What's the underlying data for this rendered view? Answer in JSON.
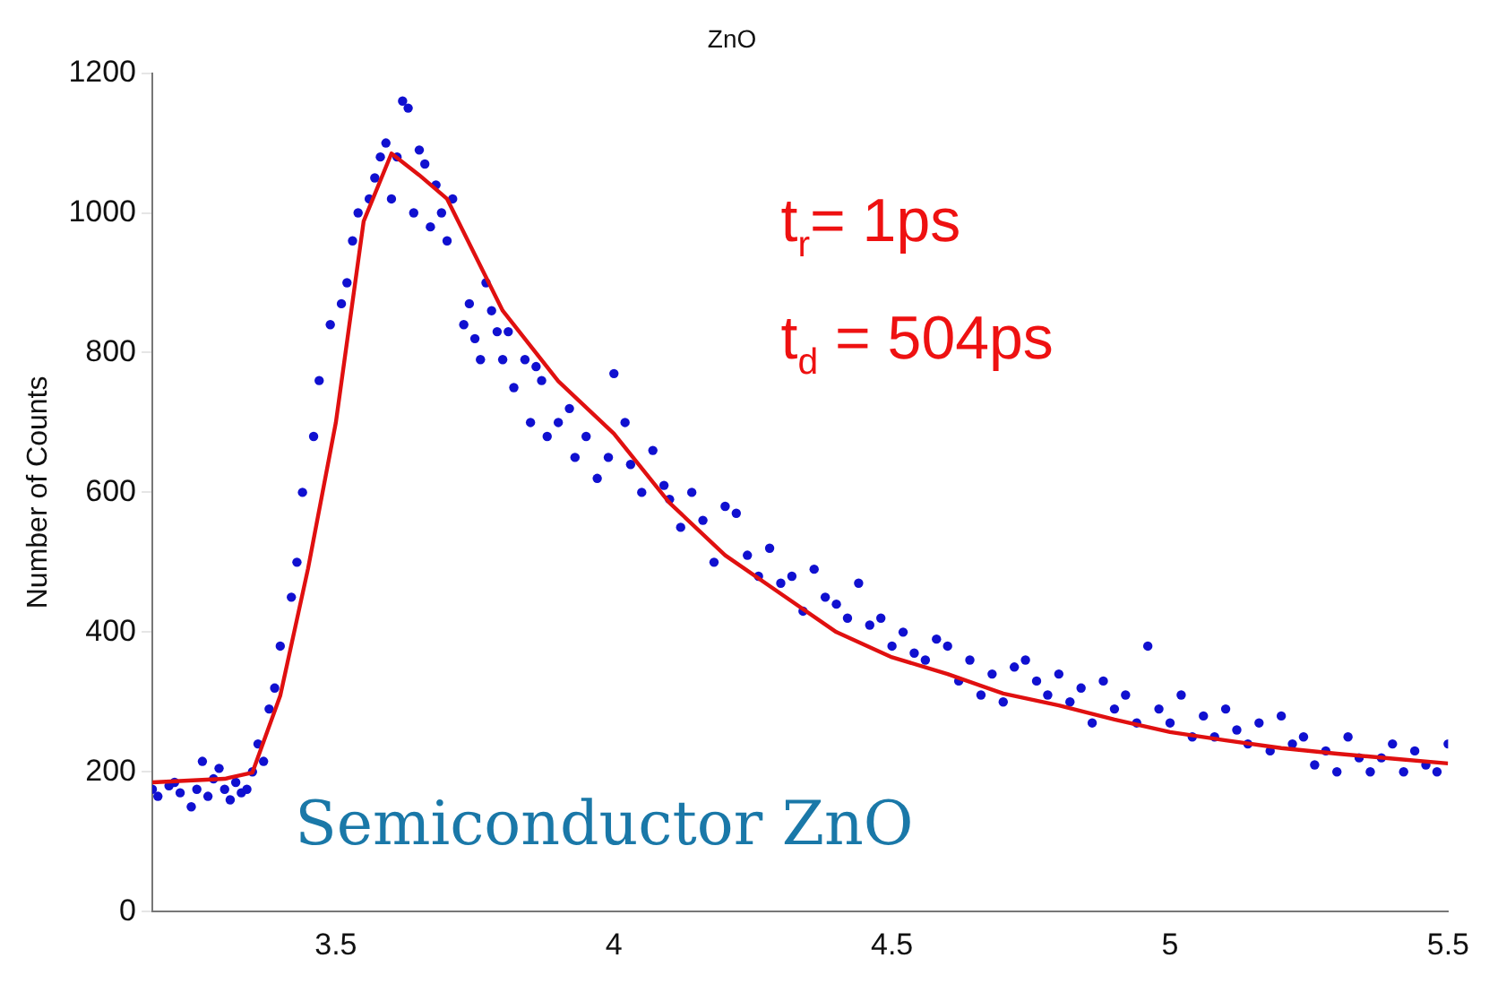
{
  "chart_data": {
    "type": "scatter",
    "title": "ZnO",
    "ylabel": "Number of Counts",
    "xlim": [
      3.17,
      5.5
    ],
    "xticks": [
      3.5,
      4,
      4.5,
      5,
      5.5
    ],
    "ylim": [
      0,
      1200
    ],
    "yticks": [
      0,
      200,
      400,
      600,
      800,
      1000,
      1200
    ],
    "marker": "circle",
    "series": [
      {
        "color": "#1010d0",
        "x": [
          3.17,
          3.18,
          3.2,
          3.21,
          3.22,
          3.24,
          3.25,
          3.26,
          3.27,
          3.28,
          3.29,
          3.3,
          3.31,
          3.32,
          3.33,
          3.34,
          3.35,
          3.36,
          3.37,
          3.38,
          3.39,
          3.4,
          3.42,
          3.43,
          3.44,
          3.46,
          3.47,
          3.49,
          3.51,
          3.52,
          3.53,
          3.54,
          3.56,
          3.57,
          3.58,
          3.59,
          3.6,
          3.61,
          3.62,
          3.63,
          3.64,
          3.65,
          3.66,
          3.67,
          3.68,
          3.69,
          3.7,
          3.71,
          3.73,
          3.74,
          3.75,
          3.76,
          3.77,
          3.78,
          3.79,
          3.8,
          3.81,
          3.82,
          3.84,
          3.85,
          3.86,
          3.87,
          3.88,
          3.9,
          3.92,
          3.93,
          3.95,
          3.97,
          3.99,
          4.0,
          4.02,
          4.03,
          4.05,
          4.07,
          4.09,
          4.1,
          4.12,
          4.14,
          4.16,
          4.18,
          4.2,
          4.22,
          4.24,
          4.26,
          4.28,
          4.3,
          4.32,
          4.34,
          4.36,
          4.38,
          4.4,
          4.42,
          4.44,
          4.46,
          4.48,
          4.5,
          4.52,
          4.54,
          4.56,
          4.58,
          4.6,
          4.62,
          4.64,
          4.66,
          4.68,
          4.7,
          4.72,
          4.74,
          4.76,
          4.78,
          4.8,
          4.82,
          4.84,
          4.86,
          4.88,
          4.9,
          4.92,
          4.94,
          4.96,
          4.98,
          5.0,
          5.02,
          5.04,
          5.06,
          5.08,
          5.1,
          5.12,
          5.14,
          5.16,
          5.18,
          5.2,
          5.22,
          5.24,
          5.26,
          5.28,
          5.3,
          5.32,
          5.34,
          5.36,
          5.38,
          5.4,
          5.42,
          5.44,
          5.46,
          5.48,
          5.5
        ],
        "values": [
          175,
          165,
          180,
          185,
          170,
          150,
          175,
          215,
          165,
          190,
          205,
          175,
          160,
          185,
          170,
          175,
          200,
          240,
          215,
          290,
          320,
          380,
          450,
          500,
          600,
          680,
          760,
          840,
          870,
          900,
          960,
          1000,
          1020,
          1050,
          1080,
          1100,
          1020,
          1080,
          1160,
          1150,
          1000,
          1090,
          1070,
          980,
          1040,
          1000,
          960,
          1020,
          840,
          870,
          820,
          790,
          900,
          860,
          830,
          790,
          830,
          750,
          790,
          700,
          780,
          760,
          680,
          700,
          720,
          650,
          680,
          620,
          650,
          770,
          700,
          640,
          600,
          660,
          610,
          590,
          550,
          600,
          560,
          500,
          580,
          570,
          510,
          480,
          520,
          470,
          480,
          430,
          490,
          450,
          440,
          420,
          470,
          410,
          420,
          380,
          400,
          370,
          360,
          390,
          380,
          330,
          360,
          310,
          340,
          300,
          350,
          360,
          330,
          310,
          340,
          300,
          320,
          270,
          330,
          290,
          310,
          270,
          380,
          290,
          270,
          310,
          250,
          280,
          250,
          290,
          260,
          240,
          270,
          230,
          280,
          240,
          250,
          210,
          230,
          200,
          250,
          220,
          200,
          220,
          240,
          200,
          230,
          210,
          200,
          240
        ]
      },
      {
        "type": "line",
        "color": "#e01010",
        "marker": "none",
        "x": [
          3.17,
          3.3,
          3.35,
          3.4,
          3.45,
          3.5,
          3.55,
          3.6,
          3.65,
          3.7,
          3.8,
          3.9,
          4.0,
          4.1,
          4.2,
          4.3,
          4.4,
          4.5,
          4.6,
          4.7,
          4.8,
          4.9,
          5.0,
          5.1,
          5.2,
          5.3,
          5.4,
          5.5
        ],
        "values": [
          185,
          190,
          199,
          309,
          491,
          700,
          988,
          1085,
          1054,
          1020,
          860,
          759,
          684,
          585,
          510,
          455,
          400,
          364,
          340,
          312,
          295,
          275,
          257,
          245,
          234,
          226,
          219,
          212
        ]
      }
    ],
    "annotations": [
      "t$_{r}$= 1ps",
      "t$_{d}$ = 504ps",
      "Semiconductor ZnO"
    ]
  }
}
